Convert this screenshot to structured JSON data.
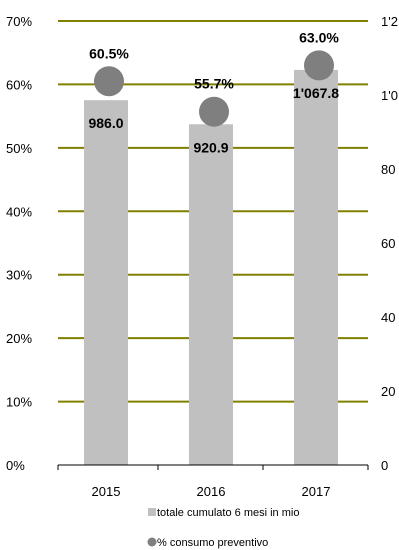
{
  "chart_data": {
    "type": "bar",
    "title": "",
    "xlabel": "",
    "ylabel": "",
    "categories": [
      "2015",
      "2016",
      "2017"
    ],
    "series": [
      {
        "name": "totale cumulato 6 mesi in mio",
        "kind": "bar",
        "axis": "right",
        "values": [
          986.0,
          920.9,
          1067.8
        ],
        "value_labels": [
          "986.0",
          "920.9",
          "1'067.8"
        ],
        "color": "#c0c0c0"
      },
      {
        "name": "% consumo preventivo",
        "kind": "marker",
        "axis": "left",
        "values": [
          60.5,
          55.7,
          63.0
        ],
        "value_labels": [
          "60.5%",
          "55.7%",
          "63.0%"
        ],
        "color": "#7f7f7f"
      }
    ],
    "y_left": {
      "ticks": [
        "0%",
        "10%",
        "20%",
        "30%",
        "40%",
        "50%",
        "60%",
        "70%"
      ],
      "ylim": [
        0,
        70
      ]
    },
    "y_right": {
      "ticks": [
        "0",
        "20",
        "40",
        "60",
        "80",
        "1'0",
        "1'2"
      ],
      "ylim": [
        0,
        1200
      ]
    },
    "grid": true,
    "grid_color": "#808000",
    "legend_position": "bottom-right"
  }
}
